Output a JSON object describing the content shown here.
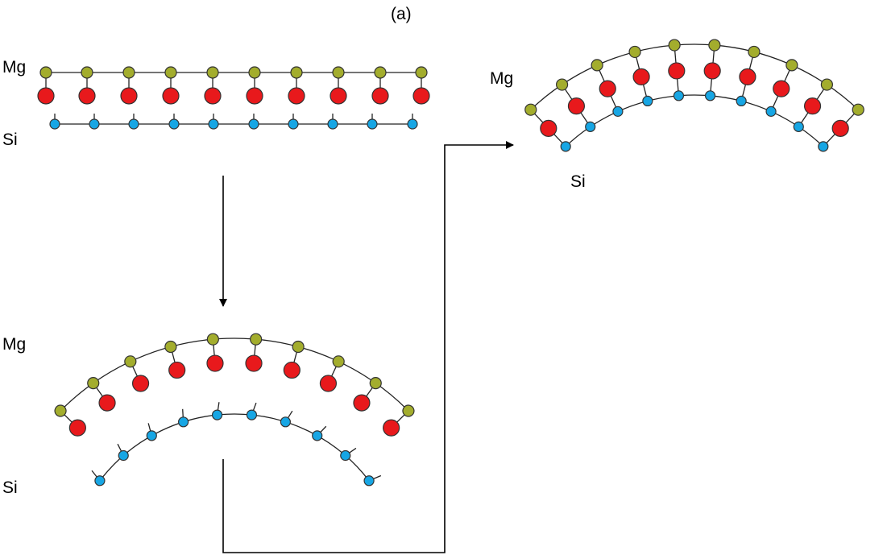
{
  "title": "(a)",
  "panels": [
    {
      "mg_label": "Mg",
      "si_label": "Si"
    },
    {
      "mg_label": "Mg",
      "si_label": "Si"
    },
    {
      "mg_label": "Mg",
      "si_label": "Si"
    }
  ]
}
